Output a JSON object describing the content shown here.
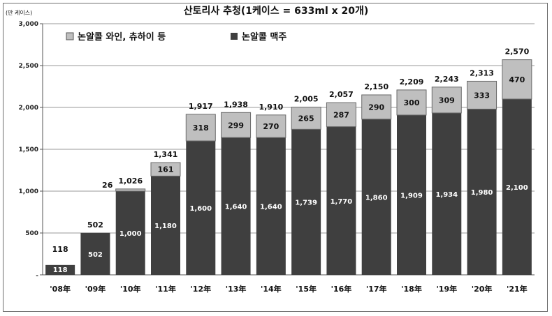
{
  "chart_data": {
    "type": "bar",
    "title": "산토리사 추청(1케이스 = 633ml x 20개)",
    "y_unit_note": "(만 케이스)",
    "categories": [
      "'08年",
      "'09年",
      "'10年",
      "'11年",
      "'12年",
      "'13年",
      "'14年",
      "'15年",
      "'16年",
      "'17年",
      "'18年",
      "'19年",
      "'20年",
      "'21年"
    ],
    "yticks": [
      "3,000",
      "2,500",
      "2,000",
      "1,500",
      "1,000",
      "500",
      "-"
    ],
    "ylim": [
      0,
      3000
    ],
    "series": [
      {
        "name": "논알콜 맥주",
        "color": "#3f3f3f",
        "values": [
          118,
          502,
          1000,
          1180,
          1600,
          1640,
          1640,
          1739,
          1770,
          1860,
          1909,
          1934,
          1980,
          2100
        ],
        "labels": [
          "118",
          "502",
          "1,000",
          "1,180",
          "1,600",
          "1,640",
          "1,640",
          "1,739",
          "1,770",
          "1,860",
          "1,909",
          "1,934",
          "1,980",
          "2,100"
        ]
      },
      {
        "name": "논알콜 와인, 츄하이 등",
        "color": "#bfbfbf",
        "values": [
          0,
          0,
          26,
          161,
          318,
          299,
          270,
          265,
          287,
          290,
          300,
          309,
          333,
          470
        ],
        "labels": [
          "",
          "",
          "26",
          "161",
          "318",
          "299",
          "270",
          "265",
          "287",
          "290",
          "300",
          "309",
          "333",
          "470"
        ]
      }
    ],
    "totals": [
      "118",
      "502",
      "1,026",
      "1,341",
      "1,917",
      "1,938",
      "1,910",
      "2,005",
      "2,057",
      "2,150",
      "2,209",
      "2,243",
      "2,313",
      "2,570"
    ],
    "legend": {
      "position": "top-left",
      "items": [
        "논알콜 와인, 츄하이 등",
        "논알콜 맥주"
      ]
    }
  }
}
